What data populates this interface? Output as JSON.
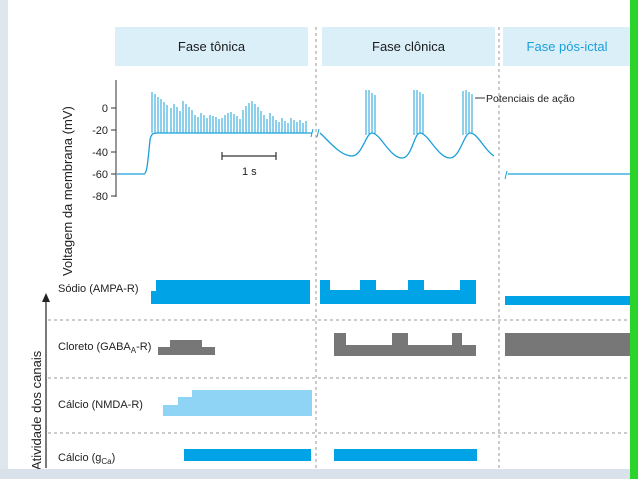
{
  "phases": {
    "tonic": "Fase tônica",
    "clonic": "Fase clônica",
    "postictal": "Fase pós-ictal"
  },
  "y_axis_label": "Voltagem da membrana (mV)",
  "y_ticks": [
    "0",
    "-20",
    "-40",
    "-60",
    "-80"
  ],
  "scale_bar_label": "1 s",
  "annotation": "Potenciais de ação",
  "channel_axis_label": "Atividade dos canais",
  "channels": {
    "sodium": "Sódio (AMPA-R)",
    "chloride_prefix": "Cloreto (GABA",
    "chloride_sub": "A",
    "chloride_suffix": "-R)",
    "calcium_nmda": "Cálcio (NMDA-R)",
    "calcium_gca_prefix": "Cálcio (g",
    "calcium_gca_sub": "Ca",
    "calcium_gca_suffix": ")"
  },
  "colors": {
    "blue": "#00a3e6",
    "light_blue": "#8fd3f5",
    "gray": "#777777",
    "header_bg": "#dbeff9",
    "header_post_text": "#1aa0d9",
    "trace": "#1aa0d9"
  }
}
